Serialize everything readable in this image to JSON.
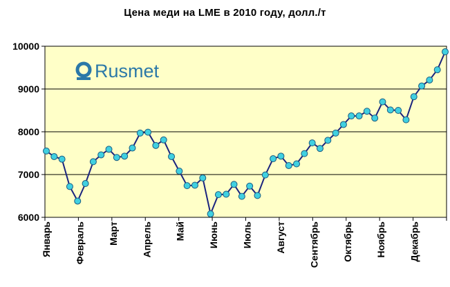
{
  "chart_data": {
    "type": "line",
    "title": "Цена меди на LME в 2010 году, долл./т",
    "ylim": [
      6000,
      10000
    ],
    "y_ticks": [
      6000,
      7000,
      8000,
      9000,
      10000
    ],
    "y_tick_labels": [
      "6000",
      "7000",
      "8000",
      "9000",
      "10000"
    ],
    "x_tick_labels": [
      "Январь",
      "Февраль",
      "Март",
      "Апрель",
      "Май",
      "Июнь",
      "Июль",
      "Август",
      "Сентябрь",
      "Октябрь",
      "Ноябрь",
      "Декабрь"
    ],
    "grid": true,
    "legend": null,
    "series": [
      {
        "values": [
          7550,
          7420,
          7360,
          6720,
          6380,
          6790,
          7300,
          7460,
          7590,
          7400,
          7430,
          7620,
          7970,
          7990,
          7680,
          7810,
          7420,
          7080,
          6740,
          6750,
          6920,
          6080,
          6530,
          6540,
          6770,
          6490,
          6730,
          6510,
          6990,
          7370,
          7430,
          7210,
          7250,
          7490,
          7740,
          7610,
          7800,
          7970,
          8170,
          8370,
          8370,
          8480,
          8320,
          8700,
          8510,
          8500,
          8280,
          8820,
          9070,
          9210,
          9450,
          9870
        ]
      }
    ],
    "colors": {
      "plot_background": "#ffffc8",
      "line": "#1a237e",
      "marker": "#40d0e0",
      "marker_edge": "#1a5a80",
      "gridline": "#000000",
      "logo": "#2b78a8"
    }
  },
  "logo": {
    "text": "Rusmet",
    "icon": "rusmet-logo-icon"
  }
}
